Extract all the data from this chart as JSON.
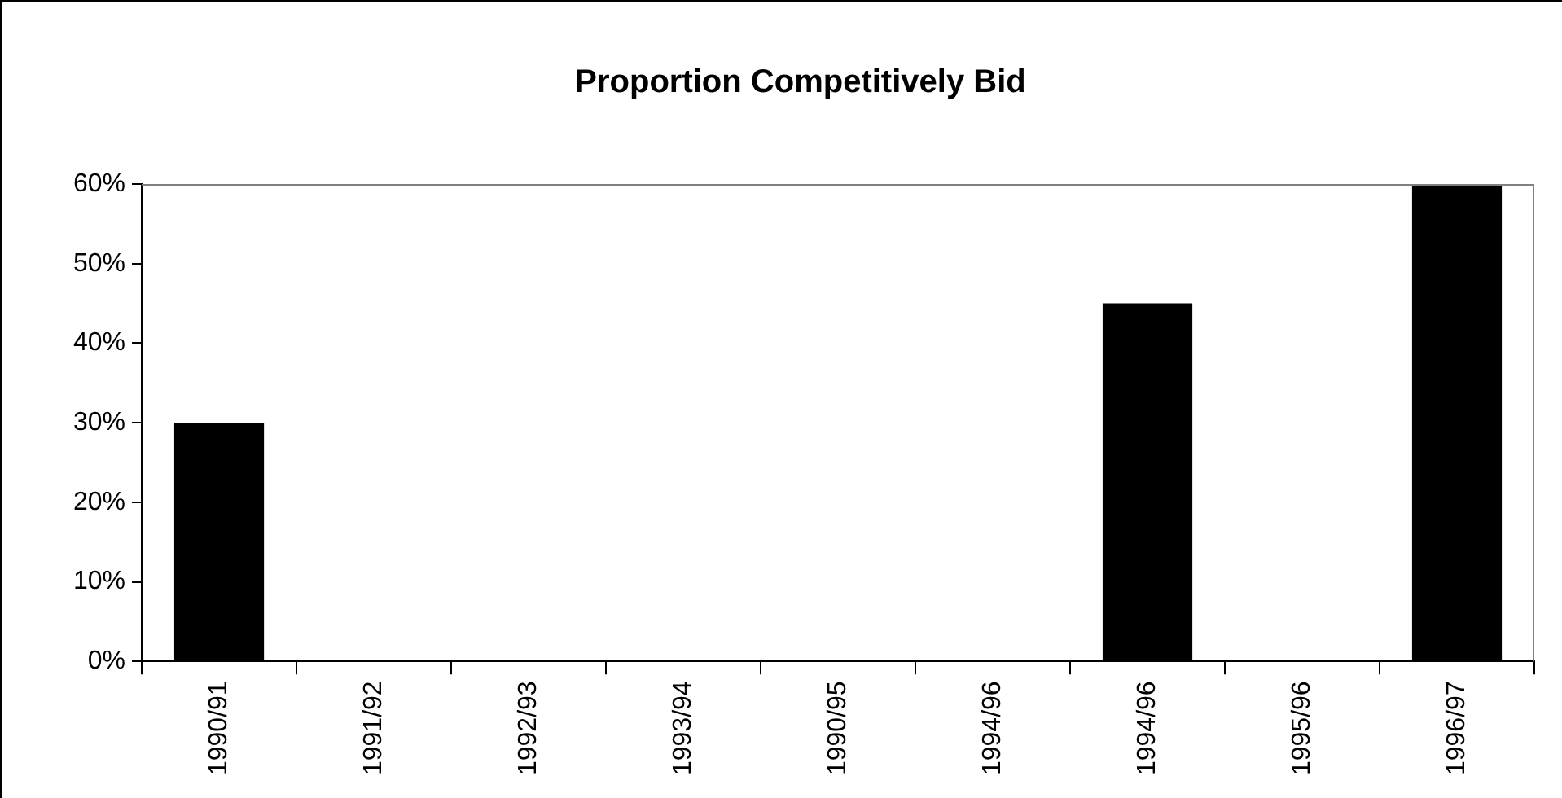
{
  "chart_data": {
    "type": "bar",
    "title": "Proportion Competitively Bid",
    "categories": [
      "1990/91",
      "1991/92",
      "1992/93",
      "1993/94",
      "1990/95",
      "1994/96",
      "1994/96",
      "1995/96",
      "1996/97"
    ],
    "values": [
      30,
      0,
      0,
      0,
      0,
      0,
      45,
      0,
      60
    ],
    "color": "#000000",
    "ylim": [
      0,
      60
    ],
    "yticks": [
      {
        "value": 0,
        "label": "0%"
      },
      {
        "value": 10,
        "label": "10%"
      },
      {
        "value": 20,
        "label": "20%"
      },
      {
        "value": 30,
        "label": "30%"
      },
      {
        "value": 40,
        "label": "40%"
      },
      {
        "value": 50,
        "label": "50%"
      },
      {
        "value": 60,
        "label": "60%"
      }
    ],
    "grid": false,
    "legend": false
  }
}
